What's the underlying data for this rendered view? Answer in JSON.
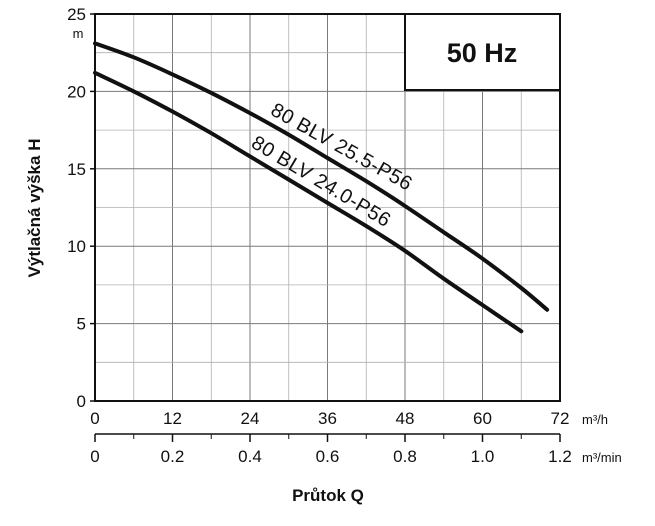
{
  "chart_data": {
    "type": "line",
    "badge": "50 Hz",
    "ylabel": "Výtlačná výška H",
    "yunit": "m",
    "xlabel": "Průtok Q",
    "ylim": [
      0,
      25
    ],
    "yticks": [
      "0",
      "5",
      "10",
      "15",
      "20",
      "25"
    ],
    "x_axis_primary": {
      "unit": "m³/h",
      "lim": [
        0,
        72
      ],
      "ticks": [
        "0",
        "12",
        "24",
        "36",
        "48",
        "60",
        "72"
      ]
    },
    "x_axis_secondary": {
      "unit": "m³/min",
      "lim": [
        0,
        1.2
      ],
      "ticks": [
        "0",
        "0.2",
        "0.4",
        "0.6",
        "0.8",
        "1.0",
        "1.2"
      ]
    },
    "grid": true,
    "series": [
      {
        "name": "80 BLV 25.5-P56",
        "x": [
          0,
          6,
          12,
          18,
          24,
          30,
          36,
          42,
          48,
          54,
          60,
          66,
          70
        ],
        "y": [
          23.1,
          22.2,
          21.1,
          19.9,
          18.6,
          17.2,
          15.7,
          14.2,
          12.6,
          10.9,
          9.2,
          7.3,
          5.9
        ]
      },
      {
        "name": "80 BLV 24.0-P56",
        "x": [
          0,
          6,
          12,
          18,
          24,
          30,
          36,
          42,
          48,
          54,
          60,
          66
        ],
        "y": [
          21.2,
          20.0,
          18.7,
          17.3,
          15.8,
          14.3,
          12.8,
          11.3,
          9.7,
          7.9,
          6.2,
          4.5
        ]
      }
    ]
  }
}
